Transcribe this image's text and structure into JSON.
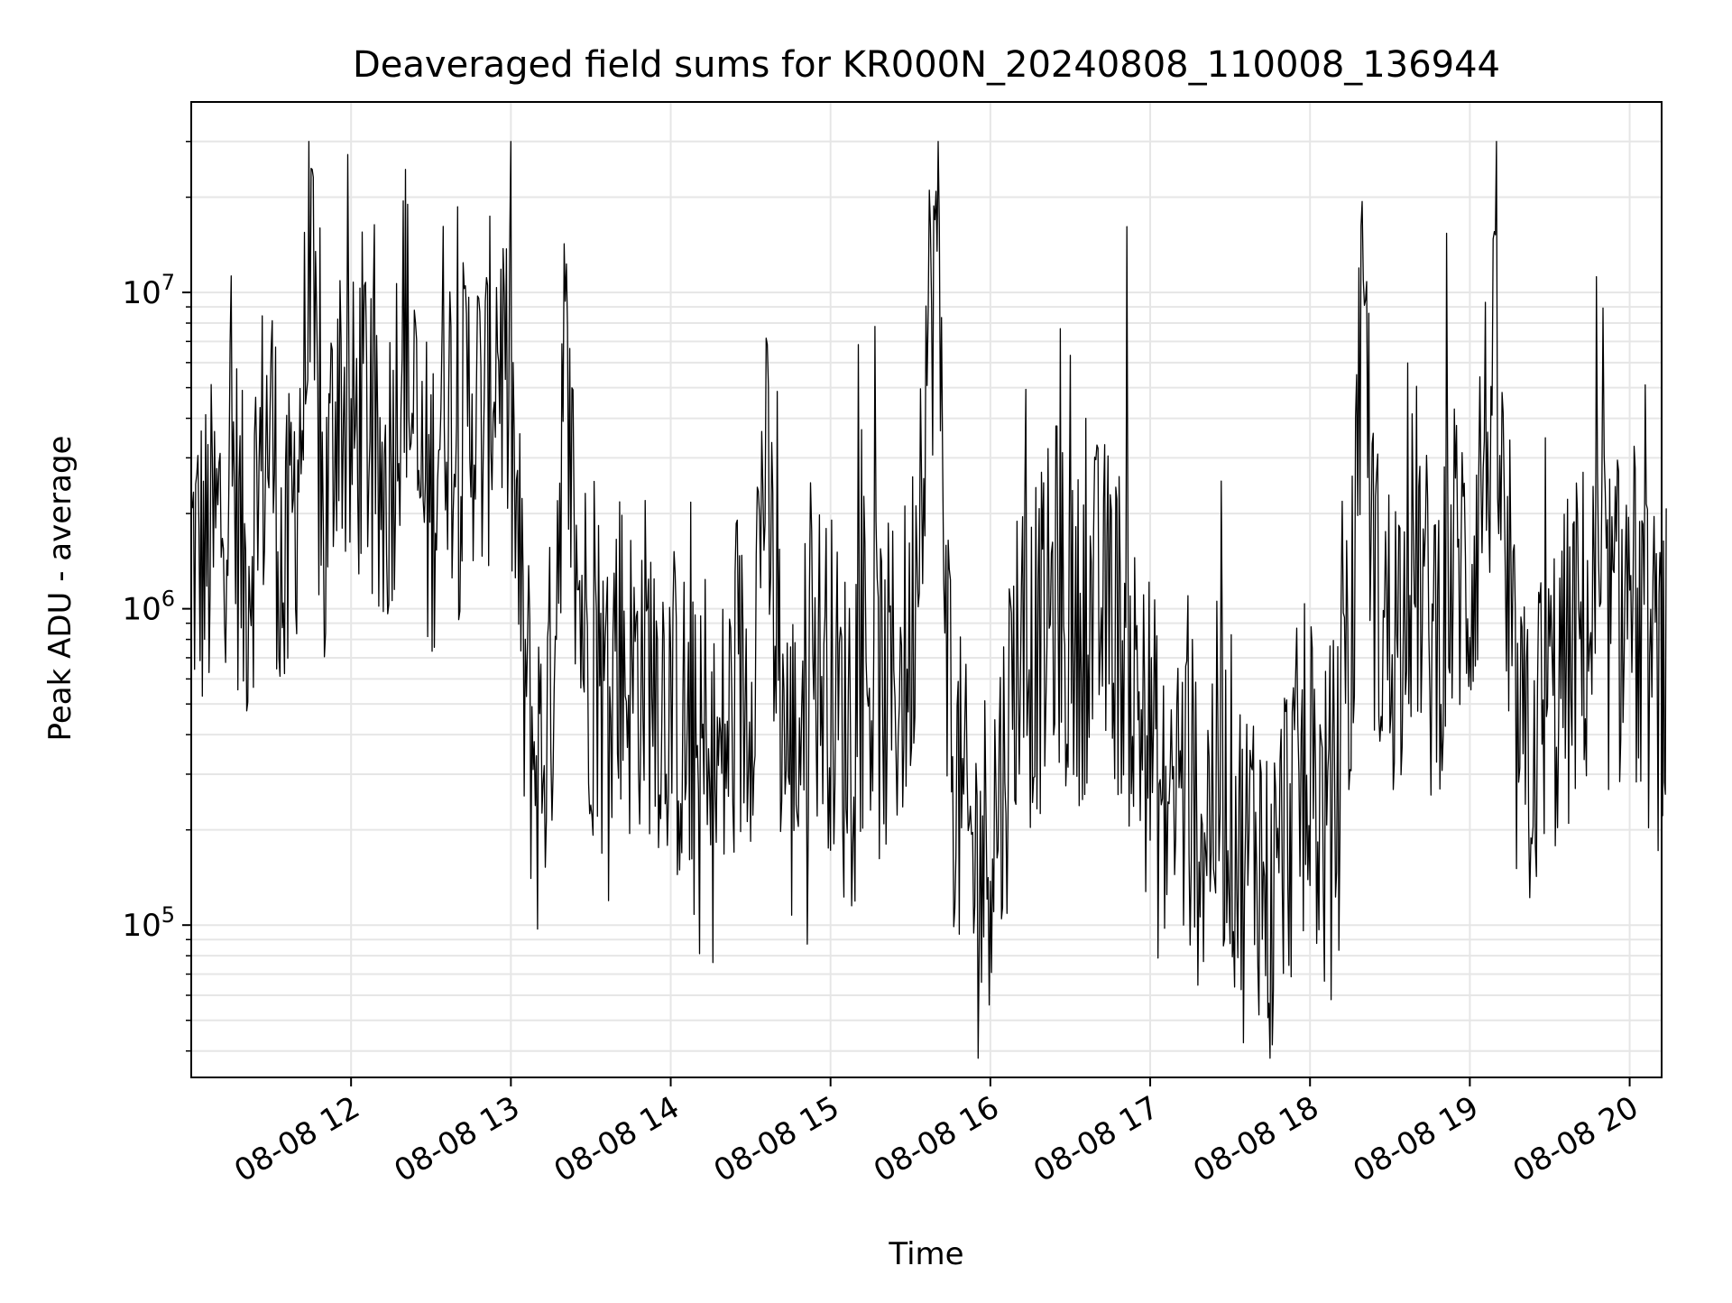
{
  "chart_data": {
    "type": "line",
    "title": "Deaveraged field sums for KR000N_20240808_110008_136944",
    "xlabel": "Time",
    "ylabel": "Peak ADU - average",
    "yscale": "log",
    "grid": true,
    "line_color": "#000000",
    "grid_color": "#e6e6e6",
    "xlim": [
      "2024-08-08 11:00",
      "2024-08-08 20:12"
    ],
    "ylim": [
      33000,
      40000000
    ],
    "xticks": [
      "2024-08-08 12:00",
      "2024-08-08 13:00",
      "2024-08-08 14:00",
      "2024-08-08 15:00",
      "2024-08-08 16:00",
      "2024-08-08 17:00",
      "2024-08-08 18:00",
      "2024-08-08 19:00",
      "2024-08-08 20:00"
    ],
    "xtick_labels": [
      "08-08 12",
      "08-08 13",
      "08-08 14",
      "08-08 15",
      "08-08 16",
      "08-08 17",
      "08-08 18",
      "08-08 19",
      "08-08 20"
    ],
    "yticks": [
      100000,
      1000000,
      10000000
    ],
    "ytick_labels": [
      {
        "base": "10",
        "exp": "5"
      },
      {
        "base": "10",
        "exp": "6"
      },
      {
        "base": "10",
        "exp": "7"
      }
    ],
    "series": [
      {
        "x": [
          "2024-08-08 11:00",
          "2024-08-08 11:05",
          "2024-08-08 11:10",
          "2024-08-08 11:15",
          "2024-08-08 11:20",
          "2024-08-08 11:25",
          "2024-08-08 11:30",
          "2024-08-08 11:35",
          "2024-08-08 11:40",
          "2024-08-08 11:45",
          "2024-08-08 11:50",
          "2024-08-08 11:55",
          "2024-08-08 12:00",
          "2024-08-08 12:05",
          "2024-08-08 12:10",
          "2024-08-08 12:15",
          "2024-08-08 12:20",
          "2024-08-08 12:25",
          "2024-08-08 12:30",
          "2024-08-08 12:35",
          "2024-08-08 12:40",
          "2024-08-08 12:45",
          "2024-08-08 12:50",
          "2024-08-08 12:55",
          "2024-08-08 13:00",
          "2024-08-08 13:05",
          "2024-08-08 13:10",
          "2024-08-08 13:15",
          "2024-08-08 13:20",
          "2024-08-08 13:25",
          "2024-08-08 13:30",
          "2024-08-08 13:35",
          "2024-08-08 13:40",
          "2024-08-08 13:45",
          "2024-08-08 13:50",
          "2024-08-08 13:55",
          "2024-08-08 14:00",
          "2024-08-08 14:05",
          "2024-08-08 14:10",
          "2024-08-08 14:15",
          "2024-08-08 14:20",
          "2024-08-08 14:25",
          "2024-08-08 14:30",
          "2024-08-08 14:35",
          "2024-08-08 14:40",
          "2024-08-08 14:45",
          "2024-08-08 14:50",
          "2024-08-08 14:55",
          "2024-08-08 15:00",
          "2024-08-08 15:05",
          "2024-08-08 15:10",
          "2024-08-08 15:15",
          "2024-08-08 15:20",
          "2024-08-08 15:25",
          "2024-08-08 15:30",
          "2024-08-08 15:35",
          "2024-08-08 15:40",
          "2024-08-08 15:45",
          "2024-08-08 15:50",
          "2024-08-08 15:55",
          "2024-08-08 16:00",
          "2024-08-08 16:05",
          "2024-08-08 16:10",
          "2024-08-08 16:15",
          "2024-08-08 16:20",
          "2024-08-08 16:25",
          "2024-08-08 16:30",
          "2024-08-08 16:35",
          "2024-08-08 16:40",
          "2024-08-08 16:45",
          "2024-08-08 16:50",
          "2024-08-08 16:55",
          "2024-08-08 17:00",
          "2024-08-08 17:05",
          "2024-08-08 17:10",
          "2024-08-08 17:15",
          "2024-08-08 17:20",
          "2024-08-08 17:25",
          "2024-08-08 17:30",
          "2024-08-08 17:35",
          "2024-08-08 17:40",
          "2024-08-08 17:45",
          "2024-08-08 17:50",
          "2024-08-08 17:55",
          "2024-08-08 18:00",
          "2024-08-08 18:05",
          "2024-08-08 18:10",
          "2024-08-08 18:15",
          "2024-08-08 18:20",
          "2024-08-08 18:25",
          "2024-08-08 18:30",
          "2024-08-08 18:35",
          "2024-08-08 18:40",
          "2024-08-08 18:45",
          "2024-08-08 18:50",
          "2024-08-08 18:55",
          "2024-08-08 19:00",
          "2024-08-08 19:05",
          "2024-08-08 19:10",
          "2024-08-08 19:15",
          "2024-08-08 19:20",
          "2024-08-08 19:25",
          "2024-08-08 19:30",
          "2024-08-08 19:35",
          "2024-08-08 19:40",
          "2024-08-08 19:45",
          "2024-08-08 19:50",
          "2024-08-08 19:55",
          "2024-08-08 20:00",
          "2024-08-08 20:05",
          "2024-08-08 20:10"
        ],
        "values": [
          1500000,
          1400000,
          1700000,
          3000000,
          1200000,
          2500000,
          4000000,
          1000000,
          3000000,
          9000000,
          1500000,
          6000000,
          3000000,
          5000000,
          2000000,
          3000000,
          9000000,
          2500000,
          2000000,
          6000000,
          3000000,
          5000000,
          3500000,
          8000000,
          4000000,
          600000,
          300000,
          500000,
          6000000,
          1200000,
          700000,
          500000,
          800000,
          600000,
          700000,
          600000,
          500000,
          400000,
          300000,
          250000,
          350000,
          500000,
          600000,
          3000000,
          700000,
          300000,
          500000,
          700000,
          600000,
          400000,
          700000,
          600000,
          500000,
          600000,
          700000,
          5000000,
          15000000,
          400000,
          200000,
          150000,
          200000,
          300000,
          800000,
          700000,
          800000,
          1200000,
          700000,
          900000,
          1000000,
          1000000,
          800000,
          500000,
          400000,
          200000,
          300000,
          250000,
          200000,
          300000,
          250000,
          150000,
          200000,
          100000,
          200000,
          250000,
          300000,
          200000,
          250000,
          600000,
          8000000,
          1000000,
          800000,
          1000000,
          1500000,
          800000,
          1000000,
          1500000,
          1200000,
          3000000,
          5000000,
          600000,
          300000,
          400000,
          500000,
          600000,
          800000,
          900000,
          1000000,
          800000,
          1200000,
          700000,
          600000
        ]
      }
    ]
  }
}
